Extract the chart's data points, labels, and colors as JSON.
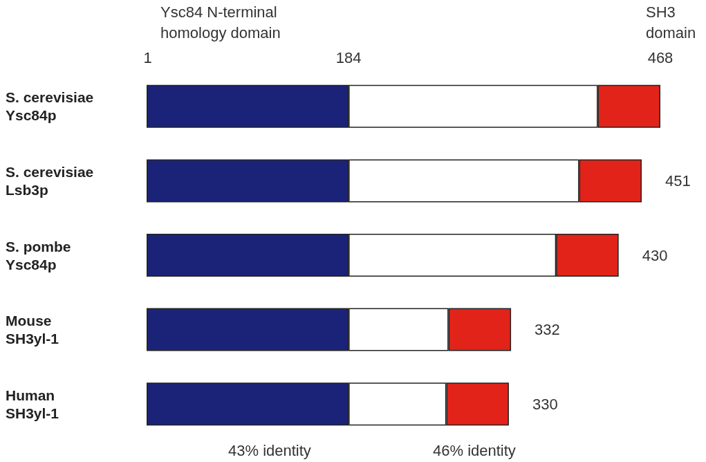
{
  "chart_data": {
    "type": "bar",
    "orientation": "horizontal",
    "stacked": true,
    "categories": [
      "S. cerevisiae\nYsc84p",
      "S. cerevisiae\nLsb3p",
      "S. pombe\nYsc84p",
      "Mouse\nSH3yl-1",
      "Human\nSH3yl-1"
    ],
    "series": [
      {
        "color": "#1b2379",
        "values": [
          184,
          184,
          184,
          184,
          184
        ]
      },
      {
        "color": "#ffffff",
        "values": [
          227,
          210,
          189,
          91,
          89
        ]
      },
      {
        "color": "#e2231a",
        "values": [
          57,
          57,
          57,
          57,
          57
        ]
      }
    ],
    "xlim": [
      0,
      468
    ],
    "xticks": [
      1,
      184,
      468
    ],
    "totals": [
      null,
      "451",
      "430",
      "332",
      "330"
    ],
    "annotations": [
      "Ysc84 N-terminal\nhomology domain",
      "SH3\ndomain",
      "43% identity",
      "46% identity"
    ]
  }
}
